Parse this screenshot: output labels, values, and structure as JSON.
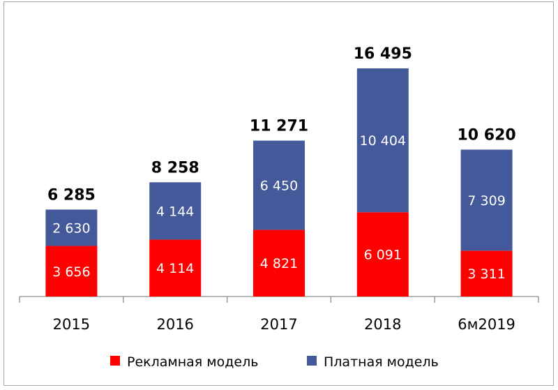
{
  "chart_data": {
    "type": "bar",
    "stacked": true,
    "categories": [
      "2015",
      "2016",
      "2017",
      "2018",
      "6м2019"
    ],
    "series": [
      {
        "name": "Рекламная модель",
        "color": "#ff0000",
        "values": [
          3656,
          4114,
          4821,
          6091,
          3311
        ]
      },
      {
        "name": "Платная модель",
        "color": "#44599a",
        "values": [
          2630,
          4144,
          6450,
          10404,
          7309
        ]
      }
    ],
    "value_labels": {
      "Рекламная модель": [
        "3 656",
        "4 114",
        "4 821",
        "6 091",
        "3 311"
      ],
      "Платная модель": [
        "2 630",
        "4 144",
        "6 450",
        "10 404",
        "7 309"
      ]
    },
    "totals": [
      6285,
      8258,
      11271,
      16495,
      10620
    ],
    "total_labels": [
      "6 285",
      "8 258",
      "11 271",
      "16 495",
      "10 620"
    ],
    "title": "",
    "xlabel": "",
    "ylabel": "",
    "ylim": [
      0,
      16495
    ],
    "grid": false,
    "legend": "bottom"
  }
}
